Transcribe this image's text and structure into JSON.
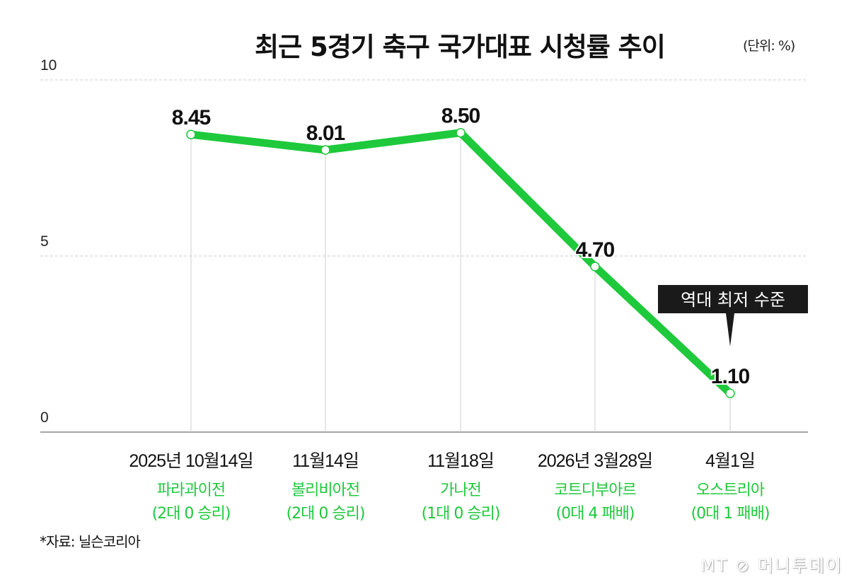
{
  "chart_data": {
    "type": "line",
    "title": "최근 5경기 축구 국가대표 시청률 추이",
    "unit_label": "(단위: %)",
    "categories": [
      "2025년 10월14일",
      "11월14일",
      "11월18일",
      "2026년 3월28일",
      "4월1일"
    ],
    "matches": [
      {
        "opponent": "파라과이전",
        "result": "(2대 0 승리)"
      },
      {
        "opponent": "볼리비아전",
        "result": "(2대 0 승리)"
      },
      {
        "opponent": "가나전",
        "result": "(1대 0 승리)"
      },
      {
        "opponent": "코트디부아르",
        "result": "(0대 4 패배)"
      },
      {
        "opponent": "오스트리아",
        "result": "(0대 1 패배)"
      }
    ],
    "values": [
      8.45,
      8.01,
      8.5,
      4.7,
      1.1
    ],
    "value_labels": [
      "8.45",
      "8.01",
      "8.50",
      "4.70",
      "1.10"
    ],
    "ylim": [
      0,
      10
    ],
    "yticks": [
      "0",
      "5",
      "10"
    ],
    "grid": true,
    "annotation": "역대 최저 수준",
    "colors": {
      "line": "#1ec93c",
      "match_text": "#1ec93c",
      "grid": "#cccccc",
      "annotation_bg": "#1a1a1a"
    }
  },
  "source": "*자료: 닐슨코리아",
  "logo": "MT 머니투데이"
}
